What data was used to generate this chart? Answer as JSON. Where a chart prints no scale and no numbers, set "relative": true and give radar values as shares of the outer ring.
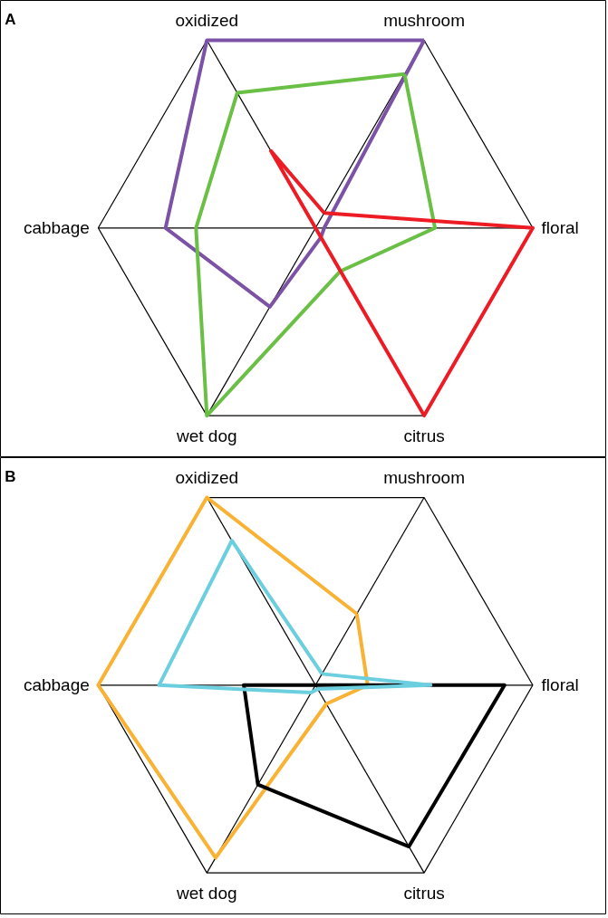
{
  "chart_data": [
    {
      "type": "radar",
      "title": "A",
      "relative": true,
      "grid": true,
      "categories": [
        "mushroom",
        "floral",
        "citrus",
        "wet dog",
        "cabbage",
        "oxidized"
      ],
      "series": [
        {
          "color": "#7b52a6",
          "values": [
            1,
            0.04,
            0.05,
            0.42,
            0.69,
            1
          ]
        },
        {
          "color": "#6abf45",
          "values": [
            0.82,
            0.55,
            0.23,
            1,
            0.55,
            0.72
          ]
        },
        {
          "color": "#ed1c24",
          "values": [
            0.08,
            1,
            1,
            0,
            0,
            0.41
          ]
        }
      ]
    },
    {
      "type": "radar",
      "title": "B",
      "relative": true,
      "grid": true,
      "categories": [
        "mushroom",
        "floral",
        "citrus",
        "wet dog",
        "cabbage",
        "oxidized"
      ],
      "series": [
        {
          "color": "#f9b233",
          "values": [
            0.38,
            0.24,
            0.1,
            0.92,
            1,
            1
          ]
        },
        {
          "color": "#000000",
          "values": [
            0,
            0.87,
            0.86,
            0.53,
            0.33,
            0
          ]
        },
        {
          "color": "#6ccfe0",
          "values": [
            0.06,
            0.53,
            0.02,
            0.04,
            0.72,
            0.77
          ]
        }
      ]
    }
  ]
}
